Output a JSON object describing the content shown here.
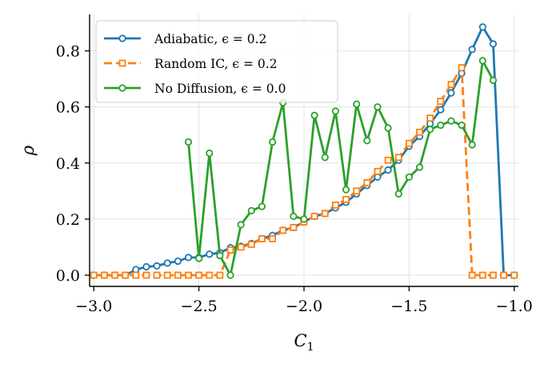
{
  "chart_data": {
    "type": "line",
    "title": "",
    "xlabel": "C",
    "xlabel_subscript": "1",
    "ylabel": "ρ",
    "xlim": [
      -3.02,
      -0.98
    ],
    "ylim": [
      -0.04,
      0.93
    ],
    "xticks": [
      -3.0,
      -2.5,
      -2.0,
      -1.5,
      -1.0
    ],
    "xtick_labels": [
      "−3.0",
      "−2.5",
      "−2.0",
      "−1.5",
      "−1.0"
    ],
    "yticks": [
      0.0,
      0.2,
      0.4,
      0.6,
      0.8
    ],
    "ytick_labels": [
      "0.0",
      "0.2",
      "0.4",
      "0.6",
      "0.8"
    ],
    "grid": true,
    "legend_position": "top-left",
    "series": [
      {
        "name": "Adiabatic",
        "epsilon_label": "ϵ = 0.2",
        "color": "#1f77b4",
        "linestyle": "solid",
        "marker": "circle",
        "x": [
          -3.0,
          -2.95,
          -2.9,
          -2.85,
          -2.8,
          -2.75,
          -2.7,
          -2.65,
          -2.6,
          -2.55,
          -2.5,
          -2.45,
          -2.4,
          -2.35,
          -2.3,
          -2.25,
          -2.2,
          -2.15,
          -2.1,
          -2.05,
          -2.0,
          -1.95,
          -1.9,
          -1.85,
          -1.8,
          -1.75,
          -1.7,
          -1.65,
          -1.6,
          -1.55,
          -1.5,
          -1.45,
          -1.4,
          -1.35,
          -1.3,
          -1.25,
          -1.2,
          -1.15,
          -1.1,
          -1.05,
          -1.0
        ],
        "y": [
          0.0,
          0.0,
          0.0,
          0.0,
          0.02,
          0.03,
          0.033,
          0.043,
          0.05,
          0.063,
          0.063,
          0.075,
          0.08,
          0.098,
          0.103,
          0.113,
          0.13,
          0.142,
          0.16,
          0.17,
          0.19,
          0.21,
          0.22,
          0.24,
          0.26,
          0.29,
          0.32,
          0.35,
          0.375,
          0.41,
          0.46,
          0.495,
          0.54,
          0.59,
          0.65,
          0.72,
          0.805,
          0.885,
          0.825,
          0.0,
          0.0
        ]
      },
      {
        "name": "Random IC",
        "epsilon_label": "ϵ = 0.2",
        "color": "#ff7f0e",
        "linestyle": "dashed",
        "marker": "square",
        "x": [
          -3.0,
          -2.95,
          -2.9,
          -2.85,
          -2.8,
          -2.75,
          -2.7,
          -2.65,
          -2.6,
          -2.55,
          -2.5,
          -2.45,
          -2.4,
          -2.35,
          -2.3,
          -2.25,
          -2.2,
          -2.15,
          -2.1,
          -2.05,
          -2.0,
          -1.95,
          -1.9,
          -1.85,
          -1.8,
          -1.75,
          -1.7,
          -1.65,
          -1.6,
          -1.55,
          -1.5,
          -1.45,
          -1.4,
          -1.35,
          -1.3,
          -1.25,
          -1.2,
          -1.15,
          -1.1,
          -1.05,
          -1.0
        ],
        "y": [
          0.0,
          0.0,
          0.0,
          0.0,
          0.0,
          0.0,
          0.0,
          0.0,
          0.0,
          0.0,
          0.0,
          0.0,
          0.0,
          0.09,
          0.1,
          0.11,
          0.13,
          0.13,
          0.16,
          0.17,
          0.19,
          0.21,
          0.22,
          0.25,
          0.27,
          0.3,
          0.33,
          0.37,
          0.41,
          0.42,
          0.47,
          0.51,
          0.56,
          0.62,
          0.68,
          0.74,
          0.0,
          0.0,
          0.0,
          0.0,
          0.0
        ]
      },
      {
        "name": "No Diffusion",
        "epsilon_label": "ϵ = 0.0",
        "color": "#2ca02c",
        "linestyle": "solid",
        "marker": "circle",
        "x": [
          -2.55,
          -2.5,
          -2.45,
          -2.4,
          -2.35,
          -2.3,
          -2.25,
          -2.2,
          -2.15,
          -2.1,
          -2.05,
          -2.0,
          -1.95,
          -1.9,
          -1.85,
          -1.8,
          -1.75,
          -1.7,
          -1.65,
          -1.6,
          -1.55,
          -1.5,
          -1.45,
          -1.4,
          -1.35,
          -1.3,
          -1.25,
          -1.2,
          -1.15,
          -1.1
        ],
        "y": [
          0.475,
          0.06,
          0.435,
          0.07,
          0.0,
          0.18,
          0.23,
          0.245,
          0.475,
          0.615,
          0.21,
          0.2,
          0.57,
          0.42,
          0.585,
          0.305,
          0.61,
          0.48,
          0.6,
          0.525,
          0.29,
          0.35,
          0.385,
          0.52,
          0.535,
          0.55,
          0.535,
          0.465,
          0.765,
          0.695
        ]
      }
    ]
  }
}
